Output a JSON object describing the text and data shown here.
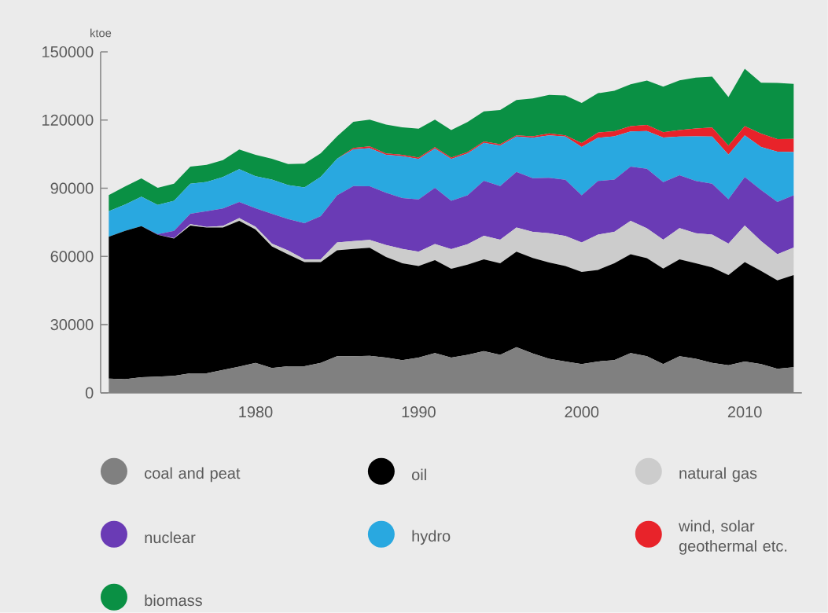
{
  "chart_data": {
    "type": "area",
    "stacked": true,
    "ylabel": "ktoe",
    "x": [
      1971,
      1972,
      1973,
      1974,
      1975,
      1976,
      1977,
      1978,
      1979,
      1980,
      1981,
      1982,
      1983,
      1984,
      1985,
      1986,
      1987,
      1988,
      1989,
      1990,
      1991,
      1992,
      1993,
      1994,
      1995,
      1996,
      1997,
      1998,
      1999,
      2000,
      2001,
      2002,
      2003,
      2004,
      2005,
      2006,
      2007,
      2008,
      2009,
      2010,
      2011,
      2012,
      2013
    ],
    "series": [
      {
        "name": "coal and peat",
        "color": "#808080",
        "values": [
          6300,
          6000,
          6900,
          7100,
          7500,
          8600,
          8600,
          10100,
          11500,
          13200,
          10900,
          11700,
          11700,
          13200,
          16100,
          16100,
          16300,
          15500,
          14400,
          15500,
          17500,
          15500,
          16700,
          18400,
          16700,
          20100,
          17300,
          15000,
          13800,
          12700,
          13800,
          14400,
          17500,
          16100,
          12700,
          16100,
          15000,
          13200,
          12100,
          13800,
          12700,
          10600,
          11300
        ]
      },
      {
        "name": "oil",
        "color": "#000000",
        "values": [
          62400,
          65300,
          66400,
          62400,
          60400,
          65000,
          64100,
          62600,
          64200,
          58700,
          53500,
          49200,
          45800,
          44300,
          46600,
          47200,
          47500,
          44300,
          42600,
          40300,
          40900,
          39100,
          39700,
          40300,
          40300,
          42000,
          42000,
          42300,
          42000,
          40500,
          40300,
          42600,
          43500,
          43100,
          42000,
          42600,
          42000,
          42000,
          39700,
          43700,
          40900,
          38900,
          40500
        ]
      },
      {
        "name": "natural gas",
        "color": "#cccccc",
        "values": [
          0,
          0,
          0,
          0,
          200,
          600,
          300,
          700,
          1200,
          1200,
          1200,
          1700,
          1200,
          1200,
          3500,
          3500,
          3500,
          5200,
          6300,
          6300,
          7100,
          8600,
          9000,
          10400,
          10400,
          10600,
          11500,
          12900,
          13200,
          13000,
          15500,
          13800,
          14700,
          13200,
          12700,
          13800,
          13200,
          14400,
          13800,
          16100,
          13200,
          11500,
          12100
        ]
      },
      {
        "name": "nuclear",
        "color": "#6a3bb5",
        "values": [
          0,
          0,
          0,
          300,
          3200,
          4600,
          6900,
          7700,
          7100,
          8100,
          13200,
          13800,
          15900,
          19000,
          20700,
          24200,
          23600,
          23000,
          22400,
          23000,
          24700,
          21300,
          21500,
          24200,
          23600,
          24500,
          23600,
          24400,
          24700,
          20700,
          23600,
          23000,
          23800,
          26200,
          25300,
          23200,
          23000,
          22400,
          19600,
          21300,
          22400,
          23000,
          23000
        ]
      },
      {
        "name": "hydro",
        "color": "#29a8e0",
        "values": [
          11200,
          11500,
          13000,
          12900,
          13200,
          13200,
          12900,
          13800,
          14400,
          14100,
          15000,
          15000,
          15800,
          17300,
          16100,
          16100,
          16700,
          16700,
          18400,
          17800,
          17300,
          18400,
          18400,
          16700,
          17800,
          15500,
          17800,
          18700,
          19000,
          21300,
          19000,
          19000,
          15500,
          16600,
          19600,
          17000,
          19600,
          20700,
          19600,
          18400,
          19000,
          22100,
          19000
        ]
      },
      {
        "name": "wind, solar geothermal etc.",
        "color": "#e8232a",
        "values": [
          0,
          0,
          0,
          0,
          0,
          0,
          0,
          0,
          0,
          0,
          0,
          0,
          0,
          0,
          0,
          600,
          800,
          600,
          600,
          600,
          600,
          600,
          600,
          600,
          600,
          600,
          600,
          800,
          600,
          1700,
          2300,
          2300,
          2300,
          2600,
          2300,
          2900,
          3500,
          4000,
          4000,
          4000,
          5800,
          5500,
          5800
        ]
      },
      {
        "name": "biomass",
        "color": "#0a9044",
        "values": [
          7100,
          8000,
          8000,
          7500,
          7500,
          7500,
          7500,
          7500,
          8600,
          9400,
          9200,
          9200,
          10400,
          10400,
          9800,
          11500,
          11800,
          12700,
          12100,
          12700,
          12100,
          12100,
          13200,
          13200,
          15000,
          15500,
          16700,
          17000,
          17500,
          17600,
          17300,
          17800,
          18400,
          19600,
          20100,
          21900,
          22400,
          22400,
          21300,
          25300,
          22400,
          24700,
          24200
        ]
      }
    ],
    "xlim": [
      1970.5,
      2013.5
    ],
    "xticks": [
      1980,
      1990,
      2000,
      2010
    ],
    "ylim": [
      0,
      150000
    ],
    "yticks": [
      0,
      30000,
      60000,
      90000,
      120000,
      150000
    ],
    "legend": "bottom"
  }
}
